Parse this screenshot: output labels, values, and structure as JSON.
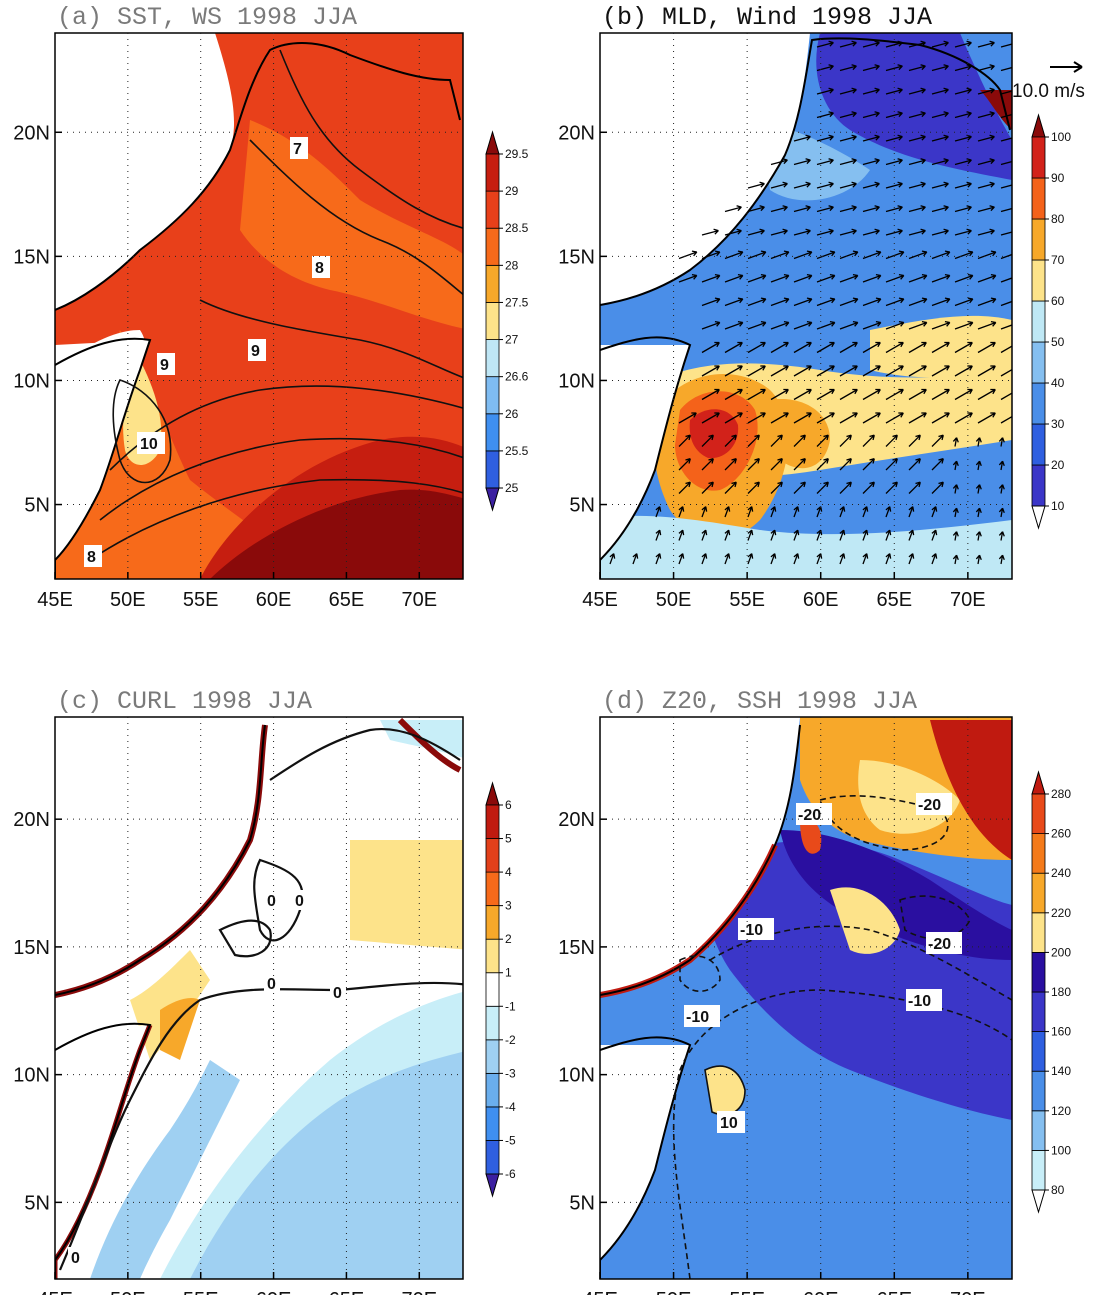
{
  "figure": {
    "panels": [
      {
        "id": "a",
        "title": "(a) SST, WS 1998 JJA",
        "title_style": "grey",
        "colorbar": {
          "levels": [
            "25",
            "25.5",
            "26",
            "26.6",
            "27",
            "27.5",
            "28",
            "28.5",
            "29",
            "29.5"
          ],
          "colors": [
            "#3b1fa0",
            "#2f5fe0",
            "#3f8ff0",
            "#7fbcf2",
            "#bfe6f5",
            "#fde38a",
            "#f7a82a",
            "#f76a1a",
            "#e8401a",
            "#c61e10",
            "#8a0a0a"
          ],
          "triangles": "both"
        },
        "contour_labels": [
          "7",
          "8",
          "9",
          "9",
          "10",
          "8"
        ]
      },
      {
        "id": "b",
        "title": "(b) MLD, Wind 1998 JJA",
        "title_style": "dark",
        "colorbar": {
          "levels": [
            "10",
            "20",
            "30",
            "40",
            "50",
            "60",
            "70",
            "80",
            "90",
            "100"
          ],
          "colors": [
            "#ffffff",
            "#3b36c8",
            "#2f5fe0",
            "#4a8ee8",
            "#85bff0",
            "#bfe8f5",
            "#fde38a",
            "#f7a82a",
            "#f4621a",
            "#d2221a",
            "#8a0a0a"
          ],
          "triangles": "both"
        },
        "vector_reference": {
          "label": "10.0 m/s"
        }
      },
      {
        "id": "c",
        "title": "(c) CURL 1998 JJA",
        "title_style": "grey",
        "colorbar": {
          "levels": [
            "-6",
            "-5",
            "-4",
            "-3",
            "-2",
            "-1",
            "1",
            "2",
            "3",
            "4",
            "5",
            "6"
          ],
          "colors": [
            "#3b1fa0",
            "#2f5fe0",
            "#3f8ff0",
            "#6aaeed",
            "#9fd0f2",
            "#c8eef8",
            "#ffffff",
            "#fde38a",
            "#f7a82a",
            "#f76a1a",
            "#e2401a",
            "#c01a10",
            "#8a0a0a"
          ],
          "triangles": "both"
        },
        "contour_labels": [
          "0",
          "0",
          "0",
          "0",
          "0"
        ]
      },
      {
        "id": "d",
        "title": "(d) Z20, SSH 1998 JJA",
        "title_style": "grey",
        "colorbar": {
          "levels": [
            "80",
            "100",
            "120",
            "140",
            "160",
            "180",
            "200",
            "220",
            "240",
            "260",
            "280"
          ],
          "colors": [
            "#ffffff",
            "#c8eef8",
            "#85bff0",
            "#4a8ee8",
            "#2f5fe0",
            "#3b36c8",
            "#2a0fa0",
            "#fde38a",
            "#f7a82a",
            "#f47a1a",
            "#e84a1a",
            "#c01a10"
          ],
          "triangles": "both"
        },
        "contour_labels": [
          "-20",
          "-20",
          "-10",
          "-20",
          "-10",
          "-10",
          "10"
        ]
      }
    ],
    "lon_ticks": [
      "45E",
      "50E",
      "55E",
      "60E",
      "65E",
      "70E"
    ],
    "lat_ticks": [
      "5N",
      "10N",
      "15N",
      "20N"
    ],
    "lon_range": [
      45,
      73
    ],
    "lat_range": [
      2,
      24
    ],
    "land_color": "#ffffff",
    "coast_color": "#000000"
  }
}
